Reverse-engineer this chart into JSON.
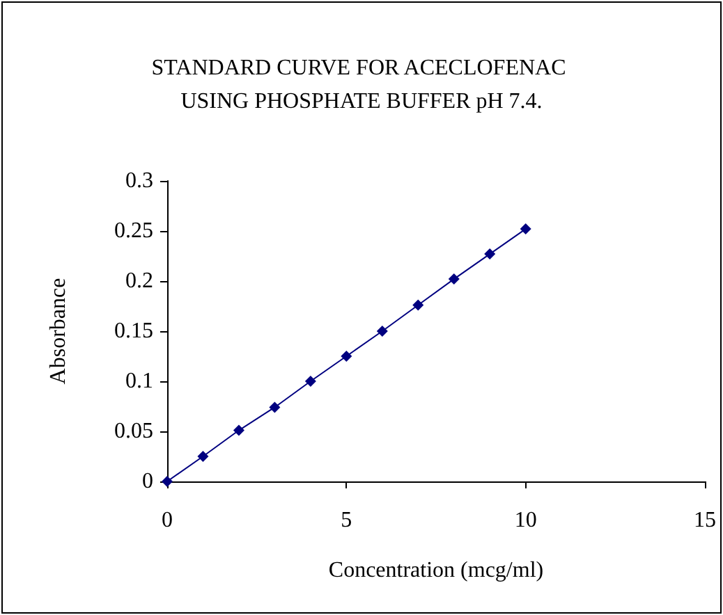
{
  "chart_data": {
    "type": "line",
    "title": "STANDARD CURVE FOR ACECLOFENAC USING PHOSPHATE BUFFER pH 7.4.",
    "xlabel": "Concentration (mcg/ml)",
    "ylabel": "Absorbance",
    "x": [
      0,
      1,
      2,
      3,
      4,
      5,
      6,
      7,
      8,
      9,
      10
    ],
    "series": [
      {
        "color": "#000080",
        "values": [
          0,
          0.025,
          0.051,
          0.074,
          0.1,
          0.125,
          0.15,
          0.176,
          0.202,
          0.227,
          0.252
        ]
      }
    ],
    "xlim": [
      0,
      15
    ],
    "xticks": [
      0,
      5,
      10,
      15
    ],
    "ylim": [
      0,
      0.3
    ],
    "yticks": [
      0,
      0.05,
      0.1,
      0.15,
      0.2,
      0.25,
      0.3
    ],
    "grid": false,
    "marker": "diamond",
    "line_style": "solid"
  }
}
